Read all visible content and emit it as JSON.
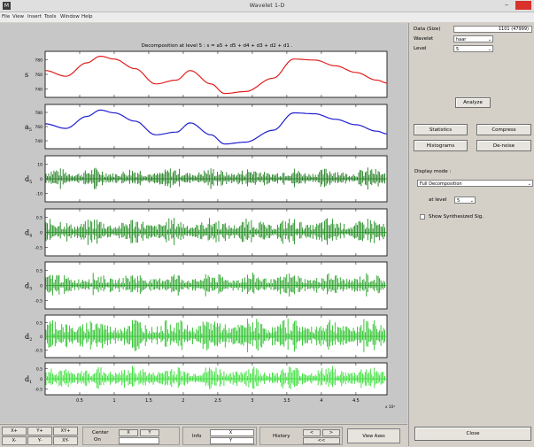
{
  "window": {
    "title": "Wavelet 1-D",
    "app_icon": "matlab-icon",
    "close_color": "#d9322a"
  },
  "menu": [
    "File",
    "View",
    "Insert",
    "Tools",
    "Window",
    "Help"
  ],
  "decomposition_title": "Decomposition at level 5 : s = a5 + d5 + d4 + d3 + d2 + d1 .",
  "x_axis": {
    "ticks": [
      "0.5",
      "1",
      "1.5",
      "2",
      "2.5",
      "3",
      "3.5",
      "4",
      "4.5"
    ],
    "exponent": "x 10⁴",
    "range": [
      0,
      4.95
    ]
  },
  "chart_data": [
    {
      "type": "line",
      "label": "s",
      "color": "#e02020",
      "yticks": [
        "780",
        "760",
        "740"
      ],
      "amplitude_scale": 0.9,
      "x": [
        0,
        0.3,
        0.6,
        0.8,
        1.0,
        1.3,
        1.6,
        1.9,
        2.1,
        2.4,
        2.6,
        2.9,
        3.3,
        3.6,
        3.9,
        4.2,
        4.5,
        4.8,
        4.95
      ],
      "y": [
        0.2,
        -0.1,
        0.6,
        0.95,
        0.8,
        0.3,
        -0.5,
        -0.3,
        0.2,
        -0.5,
        -1.0,
        -0.9,
        -0.2,
        0.8,
        0.75,
        0.45,
        0.1,
        -0.3,
        -0.45
      ]
    },
    {
      "type": "line",
      "label": "a5",
      "color": "#2020d0",
      "yticks": [
        "780",
        "760",
        "740"
      ],
      "amplitude_scale": 0.9,
      "x": [
        0,
        0.3,
        0.6,
        0.8,
        1.0,
        1.3,
        1.6,
        1.9,
        2.1,
        2.4,
        2.6,
        2.9,
        3.3,
        3.6,
        3.9,
        4.2,
        4.5,
        4.8,
        4.95
      ],
      "y": [
        0.15,
        -0.1,
        0.55,
        0.9,
        0.75,
        0.3,
        -0.45,
        -0.3,
        0.2,
        -0.45,
        -0.95,
        -0.85,
        -0.2,
        0.75,
        0.7,
        0.4,
        0.1,
        -0.25,
        -0.4
      ]
    },
    {
      "type": "line",
      "label": "d5",
      "color": "#1a7a1a",
      "yticks": [
        "10",
        "0",
        "-10"
      ],
      "amplitude_scale": 0.55
    },
    {
      "type": "line",
      "label": "d4",
      "color": "#1a8a1a",
      "yticks": [
        "0.5",
        "0",
        "-0.5"
      ],
      "amplitude_scale": 0.7
    },
    {
      "type": "line",
      "label": "d3",
      "color": "#22a022",
      "yticks": [
        "0.5",
        "0",
        "-0.5"
      ],
      "amplitude_scale": 0.6
    },
    {
      "type": "line",
      "label": "d2",
      "color": "#22c022",
      "yticks": [
        "0.5",
        "0",
        "-0.5"
      ],
      "amplitude_scale": 1.0
    },
    {
      "type": "line",
      "label": "d1",
      "color": "#33dd33",
      "yticks": [
        "0.5",
        "0",
        "-0.5"
      ],
      "amplitude_scale": 0.95
    }
  ],
  "right_panel": {
    "data_size_label": "Data (Size)",
    "data_size_value": "1101 (47999)",
    "wavelet_label": "Wavelet",
    "wavelet_value": "haar",
    "level_label": "Level",
    "level_value": "5",
    "analyze": "Analyze",
    "statistics": "Statistics",
    "compress": "Compress",
    "histograms": "Histograms",
    "denoise": "De-noise",
    "display_mode_label": "Display mode :",
    "display_mode_value": "Full Decomposition",
    "at_level_label": "at level",
    "at_level_value": "5",
    "show_synth_label": "Show Synthesized Sig.",
    "close": "Close"
  },
  "bottom": {
    "x_plus": "X+",
    "y_plus": "Y+",
    "xy_plus": "XY+",
    "x_minus": "X-",
    "y_minus": "Y-",
    "xy_minus": "XY-",
    "center_label": "Center",
    "center_state": "On",
    "x_coord": "X",
    "y_coord": "Y",
    "info": "Info",
    "info_x": "X",
    "info_y": "Y",
    "history": "History",
    "hist_left": "<",
    "hist_right": ">",
    "hist_reset": "<<",
    "view_axes": "View Axes"
  }
}
